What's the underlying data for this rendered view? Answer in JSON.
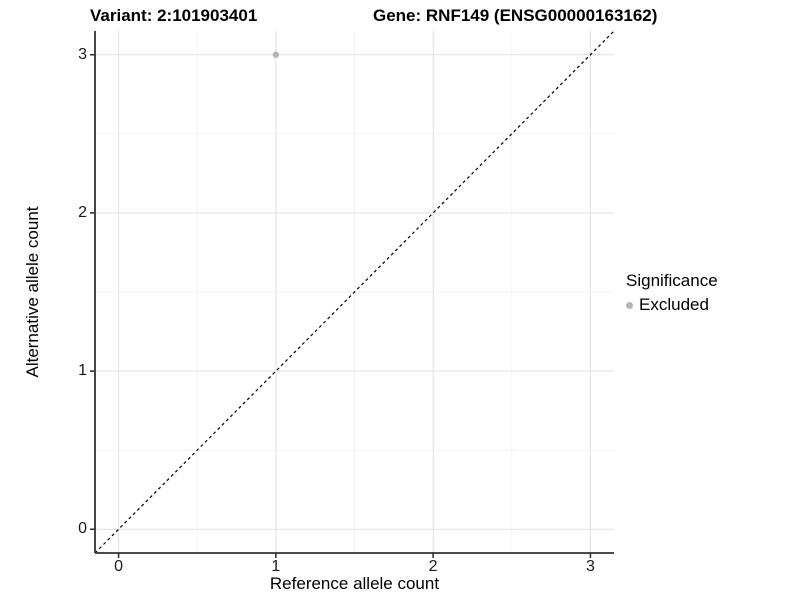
{
  "chart_data": {
    "type": "scatter",
    "title_left": "Variant: 2:101903401",
    "title_right": "Gene: RNF149 (ENSG00000163162)",
    "xlabel": "Reference allele count",
    "ylabel": "Alternative allele count",
    "xlim": [
      -0.15,
      3.15
    ],
    "ylim": [
      -0.15,
      3.15
    ],
    "xticks": [
      0,
      1,
      2,
      3
    ],
    "yticks": [
      0,
      1,
      2,
      3
    ],
    "minor_ticks": [
      0.5,
      1.5,
      2.5
    ],
    "grid": true,
    "reference_line": {
      "equation": "y = x",
      "style": "dashed",
      "color": "#000000"
    },
    "series": [
      {
        "name": "Excluded",
        "color": "#b5b5b5",
        "points": [
          {
            "x": 1,
            "y": 3
          }
        ]
      }
    ],
    "legend": {
      "title": "Significance",
      "position": "right",
      "items": [
        {
          "label": "Excluded",
          "color": "#b5b5b5"
        }
      ]
    }
  },
  "colors": {
    "background": "#ffffff",
    "grid_major": "#e3e3e3",
    "grid_minor": "#f2f2f2",
    "axis_line": "#333333",
    "point": "#b5b5b5",
    "text": "#000000"
  }
}
